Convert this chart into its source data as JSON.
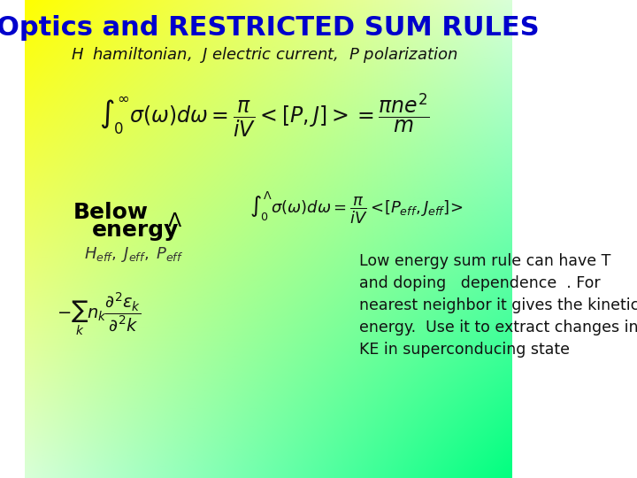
{
  "title": "Optics and RESTRICTED SUM RULES",
  "title_color": "#0000CC",
  "title_fontsize": 22,
  "bg_color_top_left": "#FFFF00",
  "bg_color_bottom": "#00FF88",
  "subtitle_italic": "H  hamiltonian,  J electric current,  P polarization",
  "main_eq": "\\int_0^{\\infty} \\sigma(\\omega)d\\omega = \\frac{\\pi}{iV} < [P, J] >= \\frac{\\pi n e^2}{m}",
  "below_label": "Below\n        energy",
  "lambda_label": "\\Lambda",
  "heff_label": "H_{eff},\\; J_{eff},\\; P_{eff}",
  "sum_eq": "-\\sum_{k} n_k \\frac{\\partial^2 \\varepsilon_k}{\\partial^2 k}",
  "restricted_eq": "\\int_0^{\\Lambda} \\sigma(\\omega)d\\omega = \\frac{\\pi}{iV} < \\left[ P_{eff}, J_{eff} \\right] >",
  "text_body": "Low energy sum rule can have T\nand doping   dependence  . For\nnearest neighbor it gives the kinetic\nenergy.  Use it to extract changes in\nKE in superconducing state",
  "text_color": "#000000",
  "eq_color": "#000000"
}
